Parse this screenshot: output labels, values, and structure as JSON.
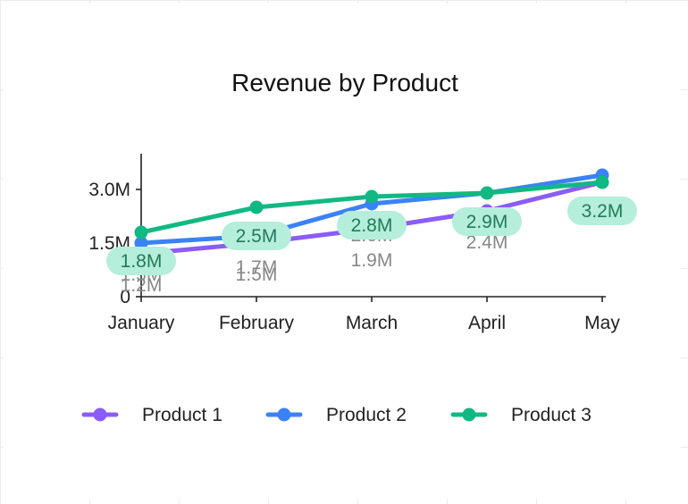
{
  "chart_data": {
    "type": "line",
    "title": "Revenue by Product",
    "categories": [
      "January",
      "February",
      "March",
      "April",
      "May"
    ],
    "y_ticks": [
      {
        "value": 0,
        "label": "0"
      },
      {
        "value": 1.5,
        "label": "1.5M"
      },
      {
        "value": 3.0,
        "label": "3.0M"
      }
    ],
    "ylim": [
      0,
      3.9
    ],
    "grid": false,
    "legend_position": "bottom",
    "series": [
      {
        "name": "Product 1",
        "color": "#8b5cf6",
        "values": [
          1.2,
          1.5,
          1.9,
          2.4,
          3.2
        ],
        "labels": [
          "1.2M",
          "1.5M",
          "1.9M",
          "2.4M",
          "3.2M"
        ],
        "label_style": "under"
      },
      {
        "name": "Product 2",
        "color": "#3b82f6",
        "values": [
          1.5,
          1.7,
          2.6,
          2.9,
          3.4
        ],
        "labels": [
          "1.5M",
          "1.7M",
          "2.6M",
          "2.9M",
          "3.4M"
        ],
        "label_style": "under"
      },
      {
        "name": "Product 3",
        "color": "#10b981",
        "values": [
          1.8,
          2.5,
          2.8,
          2.9,
          3.2
        ],
        "labels": [
          "1.8M",
          "2.5M",
          "2.8M",
          "2.9M",
          "3.2M"
        ],
        "label_style": "pill",
        "pill_bg": "#b5eedb",
        "pill_fg": "#237a5a"
      }
    ]
  }
}
